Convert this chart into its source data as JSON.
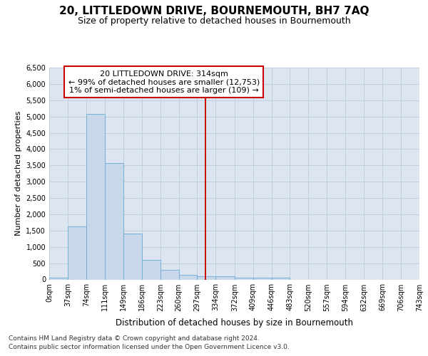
{
  "title": "20, LITTLEDOWN DRIVE, BOURNEMOUTH, BH7 7AQ",
  "subtitle": "Size of property relative to detached houses in Bournemouth",
  "xlabel": "Distribution of detached houses by size in Bournemouth",
  "ylabel": "Number of detached properties",
  "footer_line1": "Contains HM Land Registry data © Crown copyright and database right 2024.",
  "footer_line2": "Contains public sector information licensed under the Open Government Licence v3.0.",
  "bar_color": "#c8d8ea",
  "bar_edgecolor": "#6aaad4",
  "grid_color": "#c0cfe0",
  "axes_facecolor": "#dde6f0",
  "fig_facecolor": "#ffffff",
  "vline_color": "#cc0000",
  "annotation_line1": "20 LITTLEDOWN DRIVE: 314sqm",
  "annotation_line2": "← 99% of detached houses are smaller (12,753)",
  "annotation_line3": "1% of semi-detached houses are larger (109) →",
  "annotation_box_facecolor": "#ffffff",
  "annotation_box_edgecolor": "#cc0000",
  "property_size": 314,
  "bin_edges": [
    0,
    37,
    74,
    111,
    149,
    186,
    223,
    260,
    297,
    334,
    372,
    409,
    446,
    483,
    520,
    557,
    594,
    632,
    669,
    706,
    743
  ],
  "bin_counts": [
    60,
    1620,
    5080,
    3580,
    1420,
    590,
    290,
    140,
    100,
    90,
    60,
    50,
    50,
    0,
    0,
    0,
    0,
    0,
    0,
    0
  ],
  "ylim": [
    0,
    6500
  ],
  "xlim": [
    0,
    743
  ],
  "yticks": [
    0,
    500,
    1000,
    1500,
    2000,
    2500,
    3000,
    3500,
    4000,
    4500,
    5000,
    5500,
    6000,
    6500
  ],
  "title_fontsize": 11,
  "subtitle_fontsize": 9,
  "tick_fontsize": 7,
  "ylabel_fontsize": 8,
  "xlabel_fontsize": 8.5,
  "footer_fontsize": 6.5,
  "annotation_fontsize": 8
}
